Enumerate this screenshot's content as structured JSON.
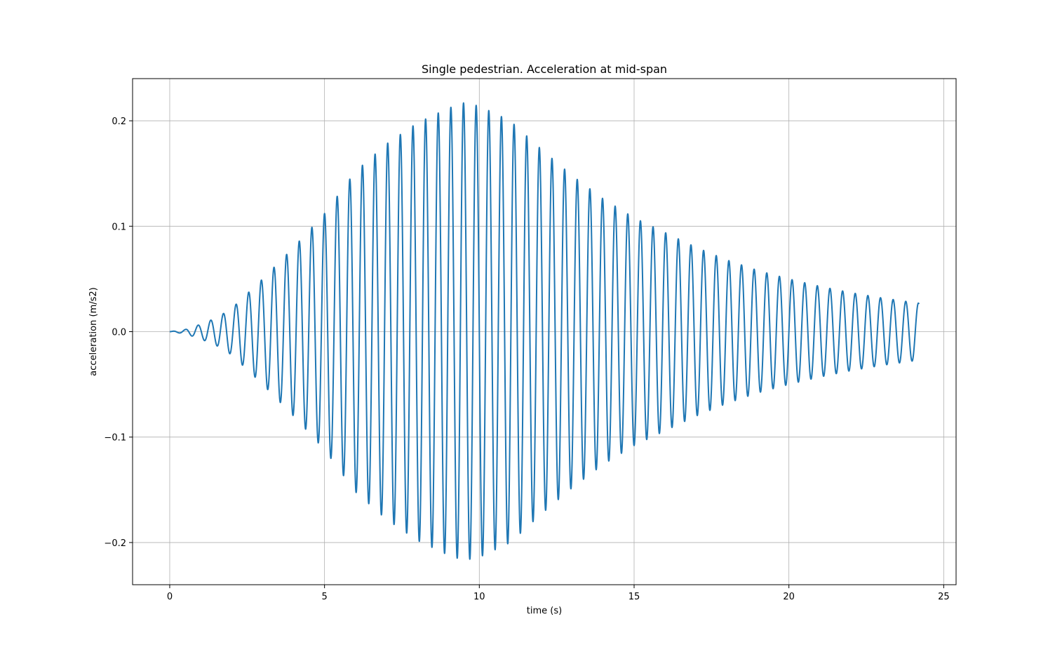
{
  "chart_data": {
    "type": "line",
    "title": "Single pedestrian. Acceleration at mid-span",
    "xlabel": "time (s)",
    "ylabel": "acceleration (m/s2)",
    "xlim": [
      -1.2,
      25.4
    ],
    "ylim": [
      -0.24,
      0.24
    ],
    "xticks": [
      0,
      5,
      10,
      15,
      20,
      25
    ],
    "xtick_labels": [
      "0",
      "5",
      "10",
      "15",
      "20",
      "25"
    ],
    "yticks": [
      -0.2,
      -0.1,
      0.0,
      0.1,
      0.2
    ],
    "ytick_labels": [
      "−0.2",
      "−0.1",
      "0.0",
      "0.1",
      "0.2"
    ],
    "grid": true,
    "legend": "none",
    "line_color": "#1f77b4",
    "signal": {
      "t_start": 0.0,
      "t_end": 24.2,
      "frequency_hz": 2.45,
      "envelope": {
        "t": [
          0,
          0.5,
          1.0,
          1.5,
          2.0,
          3.0,
          4.0,
          5.0,
          6.0,
          7.0,
          8.0,
          9.0,
          9.5,
          10.0,
          11.0,
          12.0,
          13.0,
          14.0,
          15.0,
          16.0,
          17.0,
          18.0,
          19.0,
          20.0,
          21.0,
          22.0,
          23.0,
          24.2
        ],
        "amplitude": [
          0.0,
          0.002,
          0.007,
          0.013,
          0.022,
          0.05,
          0.08,
          0.112,
          0.152,
          0.178,
          0.198,
          0.212,
          0.217,
          0.214,
          0.2,
          0.173,
          0.148,
          0.126,
          0.108,
          0.094,
          0.08,
          0.068,
          0.058,
          0.05,
          0.043,
          0.037,
          0.032,
          0.027
        ]
      }
    }
  }
}
